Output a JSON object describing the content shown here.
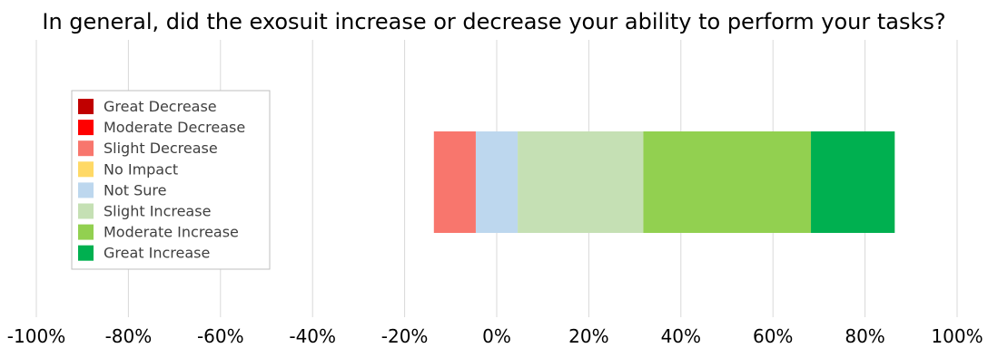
{
  "chart_data": {
    "type": "bar",
    "orientation": "horizontal",
    "stacked": true,
    "diverging": true,
    "title": "In general, did the exosuit increase or decrease your ability to perform your tasks?",
    "xlabel": "",
    "ylabel": "",
    "xlim": [
      -1.0,
      1.0
    ],
    "x_ticks": [
      -1.0,
      -0.8,
      -0.6,
      -0.4,
      -0.2,
      0.0,
      0.2,
      0.4,
      0.6,
      0.8,
      1.0
    ],
    "x_tick_labels": [
      "-100%",
      "-80%",
      "-60%",
      "-40%",
      "-20%",
      "0%",
      "20%",
      "40%",
      "60%",
      "80%",
      "100%"
    ],
    "grid": true,
    "legend_position": "left",
    "categories": [
      ""
    ],
    "series": [
      {
        "name": "Great Decrease",
        "color": "#C00000",
        "values": [
          0.0
        ]
      },
      {
        "name": "Moderate Decrease",
        "color": "#FF0000",
        "values": [
          0.0
        ]
      },
      {
        "name": "Slight Decrease",
        "color": "#F8766D",
        "values": [
          0.091
        ]
      },
      {
        "name": "No Impact",
        "color": "#FFD966",
        "values": [
          0.0
        ]
      },
      {
        "name": "Not Sure",
        "color": "#BDD7EE",
        "values": [
          0.091
        ]
      },
      {
        "name": "Slight Increase",
        "color": "#C5E0B4",
        "values": [
          0.273
        ]
      },
      {
        "name": "Moderate Increase",
        "color": "#92D050",
        "values": [
          0.364
        ]
      },
      {
        "name": "Great Increase",
        "color": "#00B050",
        "values": [
          0.182
        ]
      }
    ],
    "not_sure_split": "centered at 0"
  }
}
